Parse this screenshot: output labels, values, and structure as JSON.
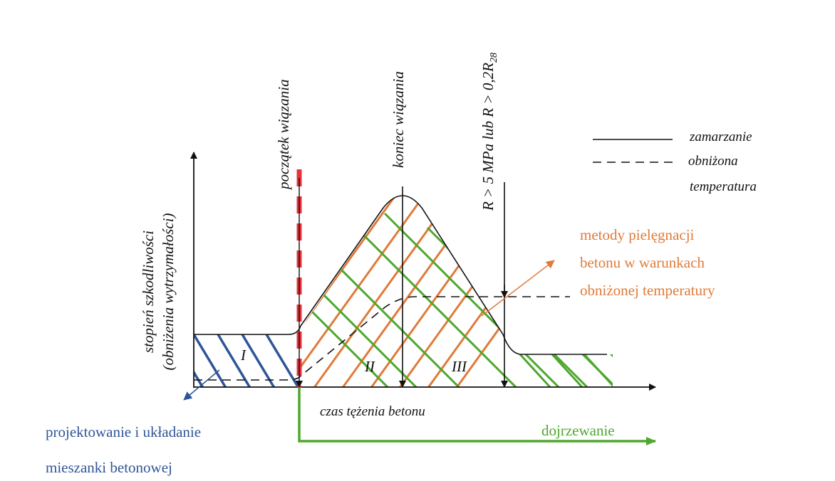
{
  "y_axis_label_line1": "stopień szkodliwości",
  "y_axis_label_line2": "(obniżenia wytrzymałości)",
  "x_axis_label": "czas tężenia betonu",
  "marker_start": "początek wiązania",
  "marker_end": "koniec wiązania",
  "marker_strength": "R > 5 MPa lub R > 0,2R",
  "marker_strength_sub": "28",
  "zone_labels": [
    "I",
    "II",
    "III"
  ],
  "legend": {
    "solid": "zamarzanie",
    "dashed_line1": "obniżona",
    "dashed_line2": "temperatura"
  },
  "annotation_orange": [
    "metody pielęgnacji",
    "betonu w warunkach",
    "obniżonej temperatury"
  ],
  "annotation_blue": [
    "projektowanie i układanie",
    "mieszanki betonowej"
  ],
  "annotation_green": "dojrzewanie",
  "colors": {
    "orange": "#e07b39",
    "blue": "#2f5597",
    "green": "#4ea72e",
    "red": "#e8323a",
    "black": "#111111"
  }
}
